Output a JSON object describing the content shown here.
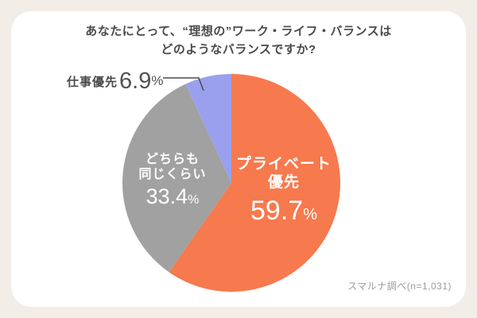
{
  "title": {
    "line1": "あなたにとって、“理想の”ワーク・ライフ・バランスは",
    "line2": "どのようなバランスですか?"
  },
  "chart_data": {
    "type": "pie",
    "title": "あなたにとって、“理想の”ワーク・ライフ・バランスはどのようなバランスですか?",
    "labels": [
      "プライベート優先",
      "どちらも同じくらい",
      "仕事優先"
    ],
    "values": [
      59.7,
      33.4,
      6.9
    ],
    "unit": "%",
    "colors": [
      "#F7794E",
      "#A1A1A1",
      "#9AA0ED"
    ],
    "start_angle": "12-oclock",
    "direction": "clockwise",
    "legend": "none",
    "source": "スマルナ調べ(n=1,031)"
  },
  "slices": {
    "private": {
      "label": "プライベート\n優先",
      "value": "59.7",
      "unit": "%"
    },
    "both": {
      "label": "どちらも\n同じくらい",
      "value": "33.4",
      "unit": "%"
    },
    "work": {
      "label": "仕事優先",
      "value": "6.9",
      "unit": "%"
    }
  },
  "source": "スマルナ調べ(n=1,031)"
}
